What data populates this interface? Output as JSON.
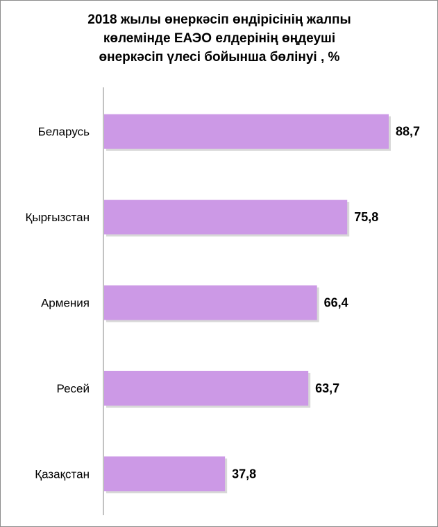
{
  "chart_data": {
    "type": "bar",
    "orientation": "horizontal",
    "title": "2018 жылы өнеркәсіп өндірісінің жалпы\nкөлемінде ЕАЭО елдерінің өңдеуші\nөнеркәсіп үлесі бойынша бөлінуі , %",
    "categories": [
      "Беларусь",
      "Қырғызстан",
      "Армения",
      "Ресей",
      "Қазақстан"
    ],
    "values": [
      88.7,
      75.8,
      66.4,
      63.7,
      37.8
    ],
    "data_labels": [
      "88,7",
      "75,8",
      "66,4",
      "63,7",
      "37,8"
    ],
    "xlim": [
      0,
      90
    ],
    "grid": false,
    "legend": "none",
    "bar_color": "#cc99e6",
    "bar_shadow_color": "#b8b8b8",
    "axis_color": "#868686"
  }
}
